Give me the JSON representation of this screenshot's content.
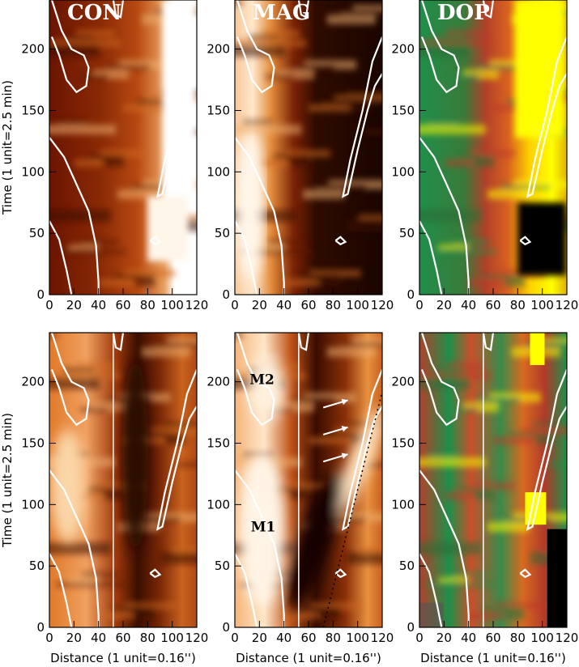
{
  "figure": {
    "xlabel": "Distance (1 unit=0.16'')",
    "ylabel": "Time (1 unit=2.5 min)",
    "x_ticks": [
      "0",
      "20",
      "40",
      "60",
      "80",
      "100",
      "120"
    ],
    "y_ticks": [
      "0",
      "50",
      "100",
      "150",
      "200"
    ],
    "xlim": [
      0,
      120
    ],
    "ylim": [
      0,
      240
    ],
    "colors": {
      "contour": "#ffffff",
      "frame": "#000000",
      "heat_dark": "#2a0800",
      "heat_mid": "#b8450e",
      "heat_light": "#ffffff",
      "dop_black": "#000000",
      "dop_green": "#1f8f4a",
      "dop_red": "#c0392b",
      "dop_yellow": "#ffff00"
    },
    "panels": [
      {
        "id": "con-top",
        "title": "CON",
        "colormap": "heat"
      },
      {
        "id": "mag-top",
        "title": "MAG",
        "colormap": "heat"
      },
      {
        "id": "dop-top",
        "title": "DOP",
        "colormap": "dop"
      },
      {
        "id": "con-bottom",
        "title": "",
        "colormap": "heat"
      },
      {
        "id": "mag-bottom",
        "title": "",
        "colormap": "heat"
      },
      {
        "id": "dop-bottom",
        "title": "",
        "colormap": "dop"
      }
    ],
    "annotations": {
      "m1": "M1",
      "m2": "M2",
      "arrows": 3,
      "vertical_line_distance": 52
    }
  }
}
